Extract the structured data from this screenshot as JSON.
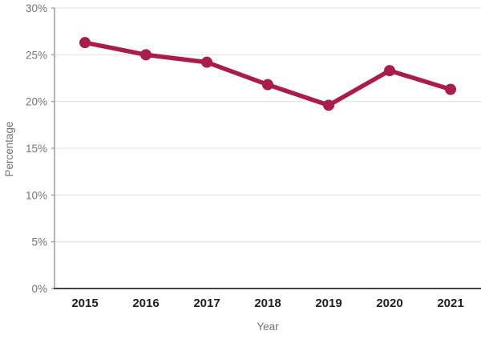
{
  "chart_data": {
    "type": "line",
    "title": "",
    "categories": [
      "2015",
      "2016",
      "2017",
      "2018",
      "2019",
      "2020",
      "2021"
    ],
    "series": [
      {
        "name": "Percentage",
        "values": [
          26.3,
          25.0,
          24.2,
          21.8,
          19.6,
          23.3,
          21.3
        ]
      }
    ],
    "xlabel": "Year",
    "ylabel": "Percentage",
    "ylim": [
      0,
      30
    ],
    "y_tick_step": 5,
    "y_tick_labels": [
      "0%",
      "5%",
      "10%",
      "15%",
      "20%",
      "25%",
      "30%"
    ],
    "grid": true,
    "legend": false,
    "line_color": "#A81D4A",
    "marker": "circle"
  },
  "style": {
    "background": "#ffffff",
    "grid_color": "#E7E7E7",
    "y_axis_color": "#9E9E9E",
    "x_axis_color": "#424242",
    "tick_text_color": "#757575",
    "x_tick_text_color": "#212121",
    "line_width": 5.5,
    "marker_radius": 7
  }
}
